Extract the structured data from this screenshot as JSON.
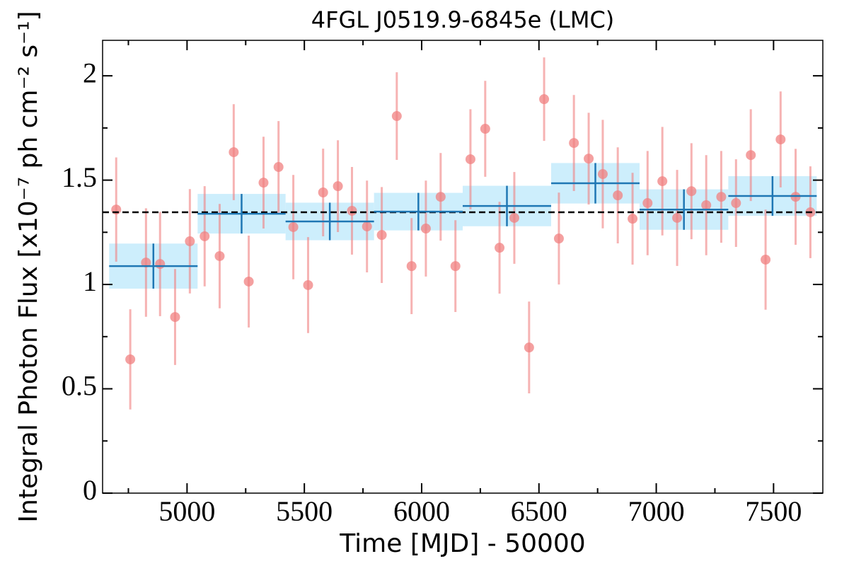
{
  "chart_data": {
    "type": "scatter",
    "title": "4FGL J0519.9-6845e (LMC)",
    "x_label": "Time [MJD] - 50000",
    "y_label": "Integral Photon Flux [x10⁻⁷ ph cm⁻² s⁻¹]",
    "xlim": [
      4640,
      7710
    ],
    "ylim": [
      0,
      2.17
    ],
    "xticks": [
      5000,
      5500,
      6000,
      6500,
      7000,
      7500
    ],
    "yticks": [
      0,
      0.5,
      1,
      1.5,
      2
    ],
    "x_minor_ticks": [
      4750,
      5250,
      5750,
      6250,
      6750,
      7250
    ],
    "y_minor_ticks": [
      0.25,
      0.75,
      1.25,
      1.75
    ],
    "points": {
      "color": "#f08080",
      "x": [
        4698,
        4758,
        4825,
        4885,
        4949,
        5012,
        5075,
        5139,
        5199,
        5263,
        5326,
        5390,
        5453,
        5516,
        5580,
        5643,
        5703,
        5767,
        5830,
        5894,
        5957,
        6018,
        6081,
        6144,
        6208,
        6271,
        6332,
        6395,
        6458,
        6522,
        6585,
        6649,
        6712,
        6772,
        6836,
        6899,
        6963,
        7026,
        7089,
        7150,
        7213,
        7277,
        7340,
        7403,
        7466,
        7530,
        7594,
        7657
      ],
      "values": [
        1.359,
        0.641,
        1.105,
        1.098,
        0.844,
        1.207,
        1.231,
        1.136,
        1.634,
        1.014,
        1.488,
        1.563,
        1.275,
        0.997,
        1.441,
        1.471,
        1.353,
        1.278,
        1.237,
        1.807,
        1.088,
        1.268,
        1.42,
        1.088,
        1.6,
        1.746,
        1.176,
        1.319,
        0.698,
        1.888,
        1.22,
        1.678,
        1.603,
        1.529,
        1.427,
        1.315,
        1.39,
        1.495,
        1.319,
        1.447,
        1.38,
        1.42,
        1.39,
        1.62,
        1.119,
        1.695,
        1.42,
        1.346
      ],
      "errors": [
        0.25,
        0.24,
        0.26,
        0.25,
        0.23,
        0.25,
        0.24,
        0.25,
        0.23,
        0.22,
        0.22,
        0.22,
        0.25,
        0.23,
        0.21,
        0.22,
        0.21,
        0.22,
        0.23,
        0.21,
        0.23,
        0.23,
        0.21,
        0.22,
        0.24,
        0.23,
        0.22,
        0.22,
        0.22,
        0.2,
        0.22,
        0.23,
        0.22,
        0.26,
        0.23,
        0.22,
        0.25,
        0.26,
        0.23,
        0.23,
        0.24,
        0.22,
        0.21,
        0.22,
        0.24,
        0.23,
        0.23,
        0.22
      ]
    },
    "binned": {
      "color": "#1f77b4",
      "band_color": "#cdeefc",
      "bins": [
        4668,
        5045,
        5420,
        5797,
        6175,
        6552,
        6929,
        7307,
        7684
      ],
      "values": [
        1.088,
        1.339,
        1.302,
        1.349,
        1.376,
        1.485,
        1.359,
        1.424
      ],
      "errors": [
        0.108,
        0.095,
        0.09,
        0.09,
        0.097,
        0.097,
        0.097,
        0.095
      ]
    },
    "reference_line": {
      "value": 1.346,
      "color": "#000000",
      "style": "dashed"
    }
  }
}
